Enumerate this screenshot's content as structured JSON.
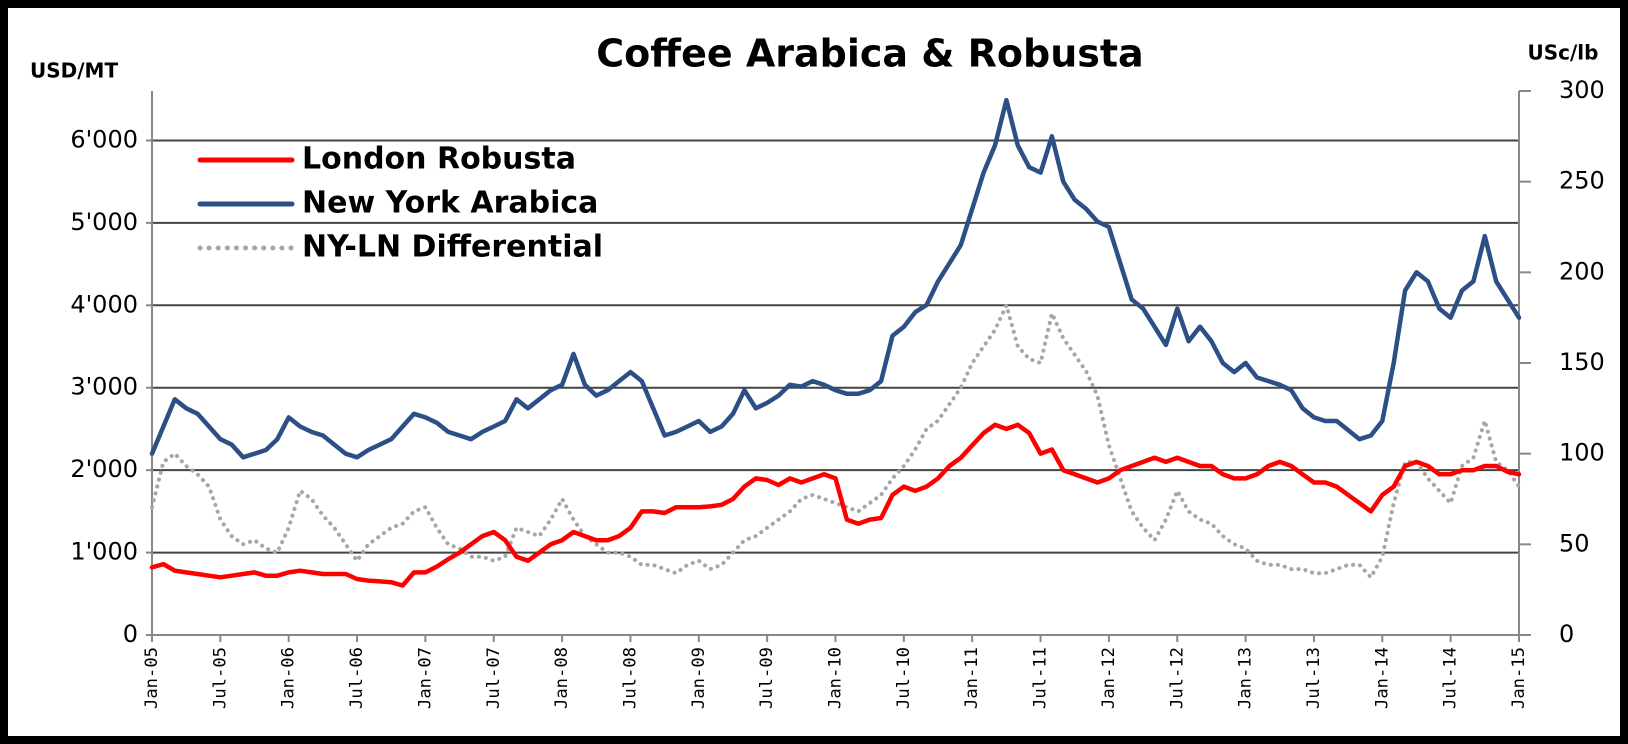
{
  "chart_data": {
    "type": "line",
    "title": "Coffee Arabica & Robusta",
    "ylabel": "USD/MT",
    "y2label": "USc/lb",
    "x": [
      "2005-01",
      "2005-02",
      "2005-03",
      "2005-04",
      "2005-05",
      "2005-06",
      "2005-07",
      "2005-08",
      "2005-09",
      "2005-10",
      "2005-11",
      "2005-12",
      "2006-01",
      "2006-02",
      "2006-03",
      "2006-04",
      "2006-05",
      "2006-06",
      "2006-07",
      "2006-08",
      "2006-09",
      "2006-10",
      "2006-11",
      "2006-12",
      "2007-01",
      "2007-02",
      "2007-03",
      "2007-04",
      "2007-05",
      "2007-06",
      "2007-07",
      "2007-08",
      "2007-09",
      "2007-10",
      "2007-11",
      "2007-12",
      "2008-01",
      "2008-02",
      "2008-03",
      "2008-04",
      "2008-05",
      "2008-06",
      "2008-07",
      "2008-08",
      "2008-09",
      "2008-10",
      "2008-11",
      "2008-12",
      "2009-01",
      "2009-02",
      "2009-03",
      "2009-04",
      "2009-05",
      "2009-06",
      "2009-07",
      "2009-08",
      "2009-09",
      "2009-10",
      "2009-11",
      "2009-12",
      "2010-01",
      "2010-02",
      "2010-03",
      "2010-04",
      "2010-05",
      "2010-06",
      "2010-07",
      "2010-08",
      "2010-09",
      "2010-10",
      "2010-11",
      "2010-12",
      "2011-01",
      "2011-02",
      "2011-03",
      "2011-04",
      "2011-05",
      "2011-06",
      "2011-07",
      "2011-08",
      "2011-09",
      "2011-10",
      "2011-11",
      "2011-12",
      "2012-01",
      "2012-02",
      "2012-03",
      "2012-04",
      "2012-05",
      "2012-06",
      "2012-07",
      "2012-08",
      "2012-09",
      "2012-10",
      "2012-11",
      "2012-12",
      "2013-01",
      "2013-02",
      "2013-03",
      "2013-04",
      "2013-05",
      "2013-06",
      "2013-07",
      "2013-08",
      "2013-09",
      "2013-10",
      "2013-11",
      "2013-12",
      "2014-01",
      "2014-02",
      "2014-03",
      "2014-04",
      "2014-05",
      "2014-06",
      "2014-07",
      "2014-08",
      "2014-09",
      "2014-10",
      "2014-11",
      "2014-12",
      "2015-01"
    ],
    "xlim": [
      "2005-01",
      "2015-01"
    ],
    "xticks": [
      {
        "value": "2005-01",
        "label": "Jan-05"
      },
      {
        "value": "2005-07",
        "label": "Jul-05"
      },
      {
        "value": "2006-01",
        "label": "Jan-06"
      },
      {
        "value": "2006-07",
        "label": "Jul-06"
      },
      {
        "value": "2007-01",
        "label": "Jan-07"
      },
      {
        "value": "2007-07",
        "label": "Jul-07"
      },
      {
        "value": "2008-01",
        "label": "Jan-08"
      },
      {
        "value": "2008-07",
        "label": "Jul-08"
      },
      {
        "value": "2009-01",
        "label": "Jan-09"
      },
      {
        "value": "2009-07",
        "label": "Jul-09"
      },
      {
        "value": "2010-01",
        "label": "Jan-10"
      },
      {
        "value": "2010-07",
        "label": "Jul-10"
      },
      {
        "value": "2011-01",
        "label": "Jan-11"
      },
      {
        "value": "2011-07",
        "label": "Jul-11"
      },
      {
        "value": "2012-01",
        "label": "Jan-12"
      },
      {
        "value": "2012-07",
        "label": "Jul-12"
      },
      {
        "value": "2013-01",
        "label": "Jan-13"
      },
      {
        "value": "2013-07",
        "label": "Jul-13"
      },
      {
        "value": "2014-01",
        "label": "Jan-14"
      },
      {
        "value": "2014-07",
        "label": "Jul-14"
      },
      {
        "value": "2015-01",
        "label": "Jan-15"
      }
    ],
    "ylim": [
      0,
      6600
    ],
    "yticks": [
      0,
      {
        "value": 1000,
        "label": "1'000"
      },
      {
        "value": 2000,
        "label": "2'000"
      },
      {
        "value": 3000,
        "label": "3'000"
      },
      {
        "value": 4000,
        "label": "4'000"
      },
      {
        "value": 5000,
        "label": "5'000"
      },
      {
        "value": 6000,
        "label": "6'000"
      }
    ],
    "y2lim": [
      0,
      300
    ],
    "y2ticks": [
      0,
      50,
      100,
      150,
      200,
      250,
      300
    ],
    "grid": true,
    "legend": "upper left",
    "series": [
      {
        "name": "London Robusta",
        "color": "#ff0000",
        "axis": "y",
        "style": "solid",
        "values": [
          820,
          860,
          780,
          760,
          740,
          720,
          700,
          720,
          740,
          760,
          720,
          720,
          760,
          780,
          760,
          740,
          740,
          740,
          680,
          660,
          650,
          640,
          600,
          760,
          760,
          830,
          920,
          1000,
          1100,
          1200,
          1250,
          1150,
          950,
          900,
          1000,
          1100,
          1150,
          1250,
          1200,
          1150,
          1150,
          1200,
          1300,
          1500,
          1500,
          1480,
          1550,
          1550,
          1550,
          1560,
          1580,
          1650,
          1800,
          1900,
          1880,
          1820,
          1900,
          1850,
          1900,
          1950,
          1900,
          1400,
          1350,
          1400,
          1420,
          1700,
          1800,
          1750,
          1800,
          1900,
          2050,
          2150,
          2300,
          2450,
          2550,
          2500,
          2550,
          2450,
          2200,
          2250,
          2000,
          1950,
          1900,
          1850,
          1900,
          2000,
          2050,
          2100,
          2150,
          2100,
          2150,
          2100,
          2050,
          2050,
          1950,
          1900,
          1900,
          1950,
          2050,
          2100,
          2050,
          1950,
          1850,
          1850,
          1800,
          1700,
          1600,
          1500,
          1700,
          1800,
          2050,
          2100,
          2050,
          1950,
          1950,
          2000,
          2000,
          2050,
          2050,
          1980,
          1950
        ]
      },
      {
        "name": "New York Arabica",
        "color": "#2c4f86",
        "axis": "y2",
        "style": "solid",
        "values": [
          100,
          115,
          130,
          125,
          122,
          115,
          108,
          105,
          98,
          100,
          102,
          108,
          120,
          115,
          112,
          110,
          105,
          100,
          98,
          102,
          105,
          108,
          115,
          122,
          120,
          117,
          112,
          110,
          108,
          112,
          115,
          118,
          130,
          125,
          130,
          135,
          138,
          155,
          138,
          132,
          135,
          140,
          145,
          140,
          125,
          110,
          112,
          115,
          118,
          112,
          115,
          122,
          135,
          125,
          128,
          132,
          138,
          137,
          140,
          138,
          135,
          133,
          133,
          135,
          140,
          165,
          170,
          178,
          182,
          195,
          205,
          215,
          235,
          255,
          270,
          295,
          270,
          258,
          255,
          275,
          250,
          240,
          235,
          228,
          225,
          205,
          185,
          180,
          170,
          160,
          180,
          162,
          170,
          162,
          150,
          145,
          150,
          142,
          140,
          138,
          135,
          125,
          120,
          118,
          118,
          113,
          108,
          110,
          118,
          150,
          190,
          200,
          195,
          180,
          175,
          190,
          195,
          220,
          195,
          185,
          175
        ]
      },
      {
        "name": "NY-LN Differential",
        "color": "#a6a6a6",
        "axis": "y",
        "style": "dotted",
        "values": [
          1550,
          2100,
          2200,
          2050,
          1950,
          1800,
          1400,
          1200,
          1100,
          1150,
          1050,
          1000,
          1300,
          1750,
          1650,
          1450,
          1300,
          1100,
          900,
          1100,
          1200,
          1300,
          1350,
          1500,
          1550,
          1300,
          1100,
          1050,
          950,
          950,
          900,
          950,
          1300,
          1250,
          1200,
          1400,
          1650,
          1400,
          1200,
          1100,
          1000,
          1000,
          950,
          850,
          850,
          800,
          750,
          850,
          900,
          800,
          850,
          1000,
          1150,
          1200,
          1300,
          1400,
          1500,
          1650,
          1700,
          1650,
          1600,
          1550,
          1500,
          1600,
          1700,
          1900,
          2050,
          2250,
          2500,
          2600,
          2800,
          3000,
          3300,
          3500,
          3700,
          4000,
          3500,
          3350,
          3300,
          3900,
          3600,
          3400,
          3200,
          2900,
          2300,
          1900,
          1500,
          1300,
          1150,
          1400,
          1750,
          1500,
          1400,
          1350,
          1200,
          1100,
          1050,
          900,
          850,
          850,
          800,
          800,
          750,
          750,
          800,
          850,
          850,
          700,
          950,
          1600,
          2100,
          2100,
          1900,
          1750,
          1600,
          2050,
          2150,
          2600,
          2100,
          2000,
          1800
        ]
      }
    ]
  }
}
